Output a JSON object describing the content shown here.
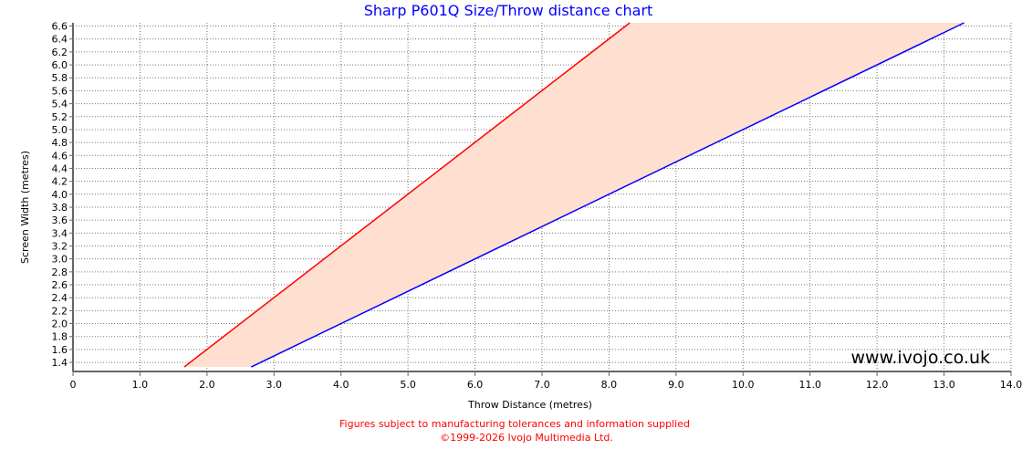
{
  "chart_data": {
    "type": "area",
    "title": "Sharp P601Q Size/Throw distance chart",
    "xlabel": "Throw Distance (metres)",
    "ylabel": "Screen Width (metres)",
    "xlim": [
      0,
      14
    ],
    "ylim": [
      1.26,
      6.65
    ],
    "xticks": [
      "0",
      "1.0",
      "2.0",
      "3.0",
      "4.0",
      "5.0",
      "6.0",
      "7.0",
      "8.0",
      "9.0",
      "10.0",
      "11.0",
      "12.0",
      "13.0",
      "14.0"
    ],
    "yticks": [
      "1.4",
      "1.6",
      "1.8",
      "2.0",
      "2.2",
      "2.4",
      "2.6",
      "2.8",
      "3.0",
      "3.2",
      "3.4",
      "3.6",
      "3.8",
      "4.0",
      "4.2",
      "4.4",
      "4.6",
      "4.8",
      "5.0",
      "5.2",
      "5.4",
      "5.6",
      "5.8",
      "6.0",
      "6.2",
      "6.4",
      "6.6"
    ],
    "grid": true,
    "series": [
      {
        "color": "#ff0000",
        "x": [
          1.66,
          8.31
        ],
        "y": [
          1.33,
          6.65
        ]
      },
      {
        "color": "#0000ff",
        "x": [
          2.66,
          13.3
        ],
        "y": [
          1.33,
          6.65
        ]
      }
    ],
    "fill_color": "#ffdfd0"
  },
  "watermark": "www.ivojo.co.uk",
  "footer": {
    "line1": "Figures subject to manufacturing tolerances and information supplied",
    "line2": "©1999-2026 Ivojo Multimedia Ltd."
  },
  "colors": {
    "title": "#0000ff",
    "footer": "#ff0000"
  }
}
